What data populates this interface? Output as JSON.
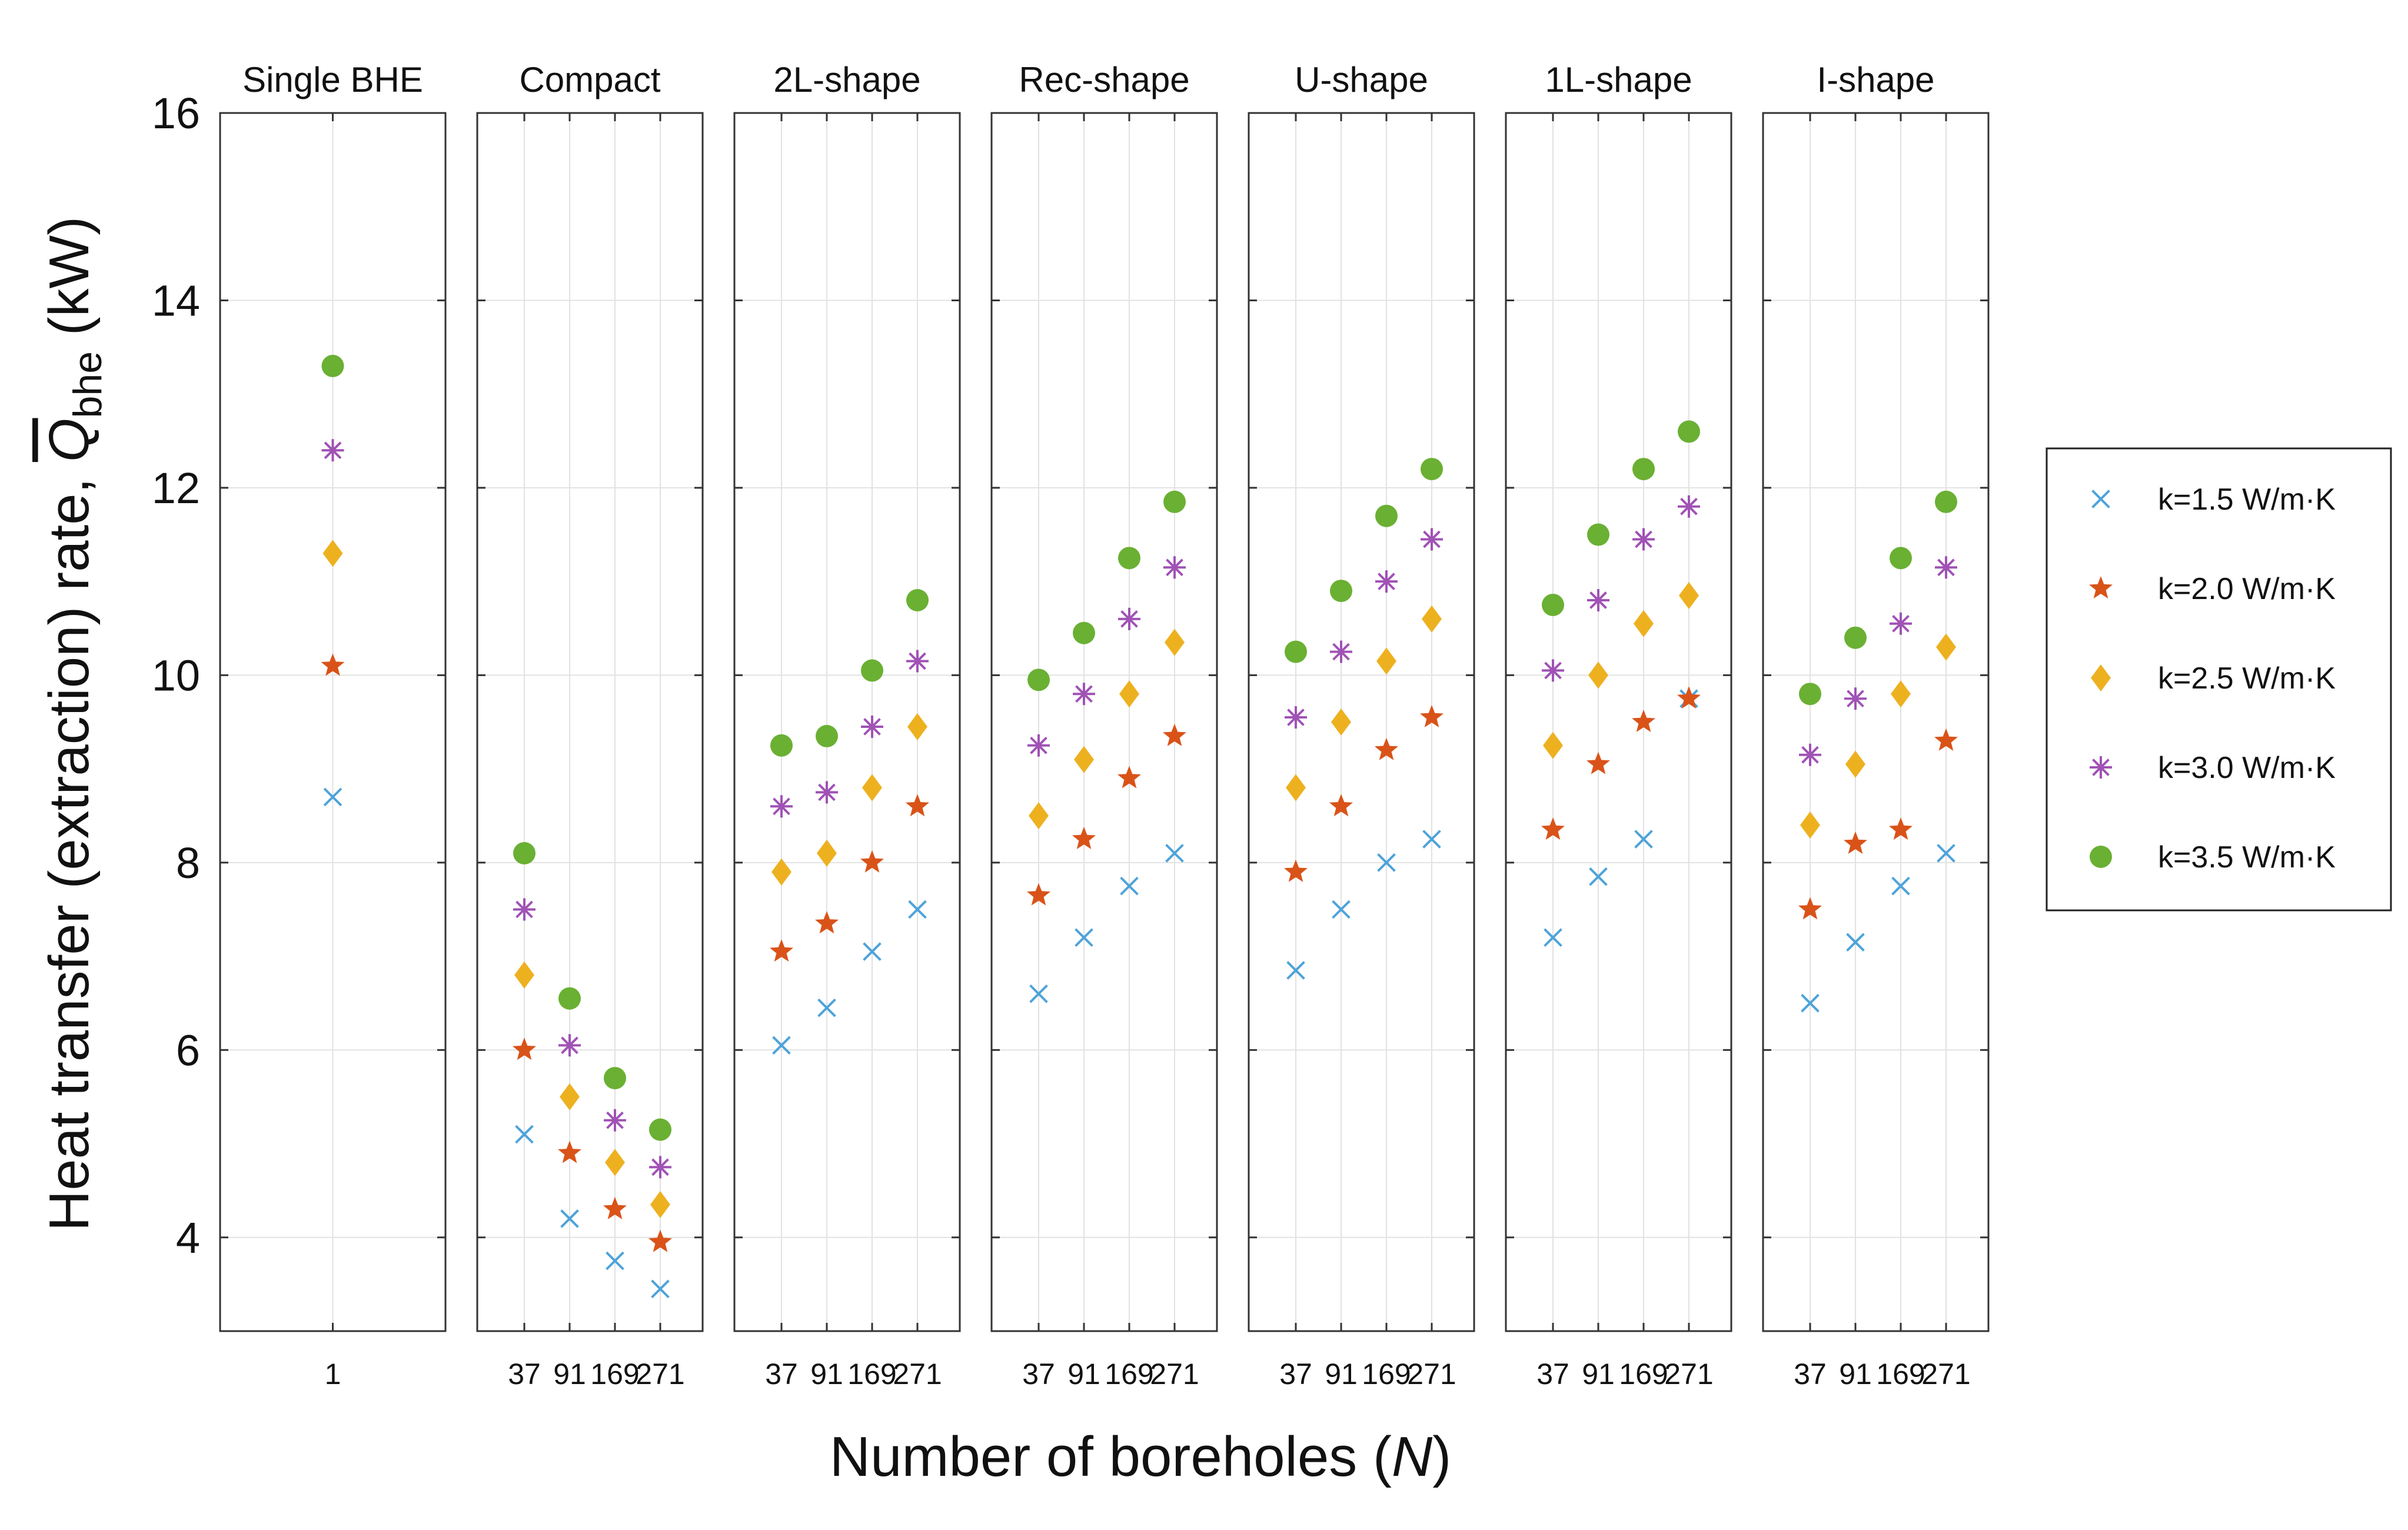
{
  "chart_data": {
    "type": "scatter",
    "ylabel_main": "Heat transfer (extraction) rate,",
    "ylabel_symbol": "Q",
    "ylabel_subscript": "bhe",
    "ylabel_unit": "(kW)",
    "xlabel_main": "Number of boreholes (",
    "xlabel_var": "N",
    "xlabel_end": ")",
    "ylim": [
      3,
      16
    ],
    "yticks": [
      "4",
      "6",
      "8",
      "10",
      "12",
      "14",
      "16"
    ],
    "grid": true,
    "legend_position": "right",
    "colors": {
      "k15": "#4da3d9",
      "k20": "#d95319",
      "k25": "#edb120",
      "k30": "#a052b5",
      "k35": "#6ab033"
    },
    "legend": [
      {
        "key": "k15",
        "label": "k=1.5 W/m·K",
        "marker": "x"
      },
      {
        "key": "k20",
        "label": "k=2.0 W/m·K",
        "marker": "star"
      },
      {
        "key": "k25",
        "label": "k=2.5 W/m·K",
        "marker": "diamond"
      },
      {
        "key": "k30",
        "label": "k=3.0 W/m·K",
        "marker": "asterisk"
      },
      {
        "key": "k35",
        "label": "k=3.5 W/m·K",
        "marker": "circle"
      }
    ],
    "panels": [
      {
        "title": "Single BHE",
        "categories": [
          "1"
        ],
        "series": {
          "k15": [
            8.7
          ],
          "k20": [
            10.1
          ],
          "k25": [
            11.3
          ],
          "k30": [
            12.4
          ],
          "k35": [
            13.3
          ]
        }
      },
      {
        "title": "Compact",
        "categories": [
          "37",
          "91",
          "169",
          "271"
        ],
        "series": {
          "k15": [
            5.1,
            4.2,
            3.75,
            3.45
          ],
          "k20": [
            6.0,
            4.9,
            4.3,
            3.95
          ],
          "k25": [
            6.8,
            5.5,
            4.8,
            4.35
          ],
          "k30": [
            7.5,
            6.05,
            5.25,
            4.75
          ],
          "k35": [
            8.1,
            6.55,
            5.7,
            5.15
          ]
        }
      },
      {
        "title": "2L-shape",
        "categories": [
          "37",
          "91",
          "169",
          "271"
        ],
        "series": {
          "k15": [
            6.05,
            6.45,
            7.05,
            7.5
          ],
          "k20": [
            7.05,
            7.35,
            8.0,
            8.6
          ],
          "k25": [
            7.9,
            8.1,
            8.8,
            9.45
          ],
          "k30": [
            8.6,
            8.75,
            9.45,
            10.15
          ],
          "k35": [
            9.25,
            9.35,
            10.05,
            10.8
          ]
        }
      },
      {
        "title": "Rec-shape",
        "categories": [
          "37",
          "91",
          "169",
          "271"
        ],
        "series": {
          "k15": [
            6.6,
            7.2,
            7.75,
            8.1
          ],
          "k20": [
            7.65,
            8.25,
            8.9,
            9.35
          ],
          "k25": [
            8.5,
            9.1,
            9.8,
            10.35
          ],
          "k30": [
            9.25,
            9.8,
            10.6,
            11.15
          ],
          "k35": [
            9.95,
            10.45,
            11.25,
            11.85
          ]
        }
      },
      {
        "title": "U-shape",
        "categories": [
          "37",
          "91",
          "169",
          "271"
        ],
        "series": {
          "k15": [
            6.85,
            7.5,
            8.0,
            8.25
          ],
          "k20": [
            7.9,
            8.6,
            9.2,
            9.55
          ],
          "k25": [
            8.8,
            9.5,
            10.15,
            10.6
          ],
          "k30": [
            9.55,
            10.25,
            11.0,
            11.45
          ],
          "k35": [
            10.25,
            10.9,
            11.7,
            12.2
          ]
        }
      },
      {
        "title": "1L-shape",
        "categories": [
          "37",
          "91",
          "169",
          "271"
        ],
        "series": {
          "k15": [
            7.2,
            7.85,
            8.25,
            9.75
          ],
          "k20": [
            8.35,
            9.05,
            9.5,
            9.75
          ],
          "k25": [
            9.25,
            10.0,
            10.55,
            10.85
          ],
          "k30": [
            10.05,
            10.8,
            11.45,
            11.8
          ],
          "k35": [
            10.75,
            11.5,
            12.2,
            12.6
          ]
        }
      },
      {
        "title": "I-shape",
        "categories": [
          "37",
          "91",
          "169",
          "271"
        ],
        "series": {
          "k15": [
            6.5,
            7.15,
            7.75,
            8.1
          ],
          "k20": [
            7.5,
            8.2,
            8.35,
            9.3
          ],
          "k25": [
            8.4,
            9.05,
            9.8,
            10.3
          ],
          "k30": [
            9.15,
            9.75,
            10.55,
            11.15
          ],
          "k35": [
            9.8,
            10.4,
            11.25,
            11.85
          ]
        }
      }
    ]
  }
}
